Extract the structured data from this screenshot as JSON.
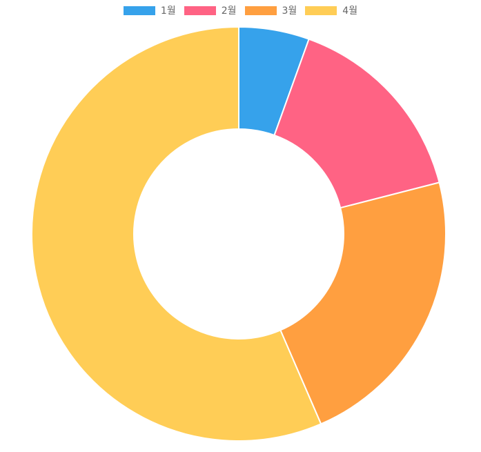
{
  "chart_data": {
    "type": "pie",
    "variant": "doughnut",
    "categories": [
      "1월",
      "2월",
      "3월",
      "4월"
    ],
    "values": [
      5.5,
      15.5,
      22.5,
      56.5
    ],
    "colors": [
      "#36a2eb",
      "#ff6384",
      "#ff9f40",
      "#ffcd56"
    ],
    "legend_position": "top",
    "segment_border_color": "#ffffff"
  }
}
